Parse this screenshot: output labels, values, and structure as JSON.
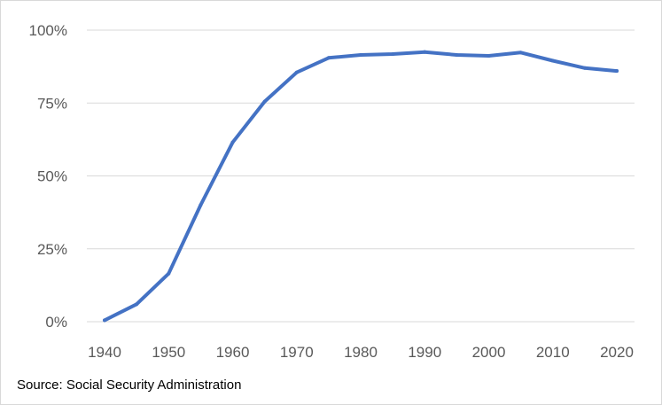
{
  "chart_data": {
    "type": "line",
    "title": "",
    "xlabel": "",
    "ylabel": "",
    "x": [
      1940,
      1945,
      1950,
      1955,
      1960,
      1965,
      1970,
      1975,
      1980,
      1985,
      1990,
      1995,
      2000,
      2005,
      2010,
      2015,
      2020
    ],
    "series": [
      {
        "values": [
          0.5,
          6,
          16.5,
          40,
          61.5,
          75.5,
          85.5,
          90.5,
          91.5,
          91.8,
          92.5,
          91.5,
          91.2,
          92.3,
          89.5,
          87,
          86
        ]
      }
    ],
    "xlim": [
      1940,
      2020
    ],
    "ylim": [
      0,
      100
    ],
    "x_ticks": [
      "1940",
      "1950",
      "1960",
      "1970",
      "1980",
      "1990",
      "2000",
      "2010",
      "2020"
    ],
    "y_ticks": [
      "0%",
      "25%",
      "50%",
      "75%",
      "100%"
    ],
    "grid": true,
    "legend": false,
    "colors": {
      "line": "#4472c4",
      "grid": "#d9d9d9",
      "tick_text": "#595959"
    }
  },
  "source": "Source: Social Security Administration"
}
